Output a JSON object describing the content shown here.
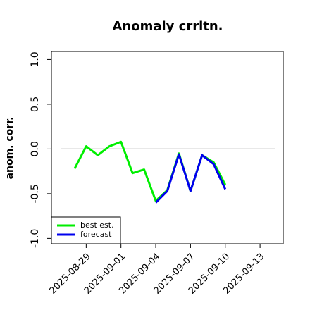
{
  "chart_data": {
    "type": "line",
    "title": "Anomaly crrltn.",
    "y_label": "anom. corr.",
    "x": [
      "2025-08-28",
      "2025-08-29",
      "2025-08-30",
      "2025-08-31",
      "2025-09-01",
      "2025-09-02",
      "2025-09-03",
      "2025-09-04",
      "2025-09-05",
      "2025-09-06",
      "2025-09-07",
      "2025-09-08",
      "2025-09-09",
      "2025-09-10"
    ],
    "series": [
      {
        "name": "best est.",
        "color": "#00ee00",
        "values": [
          -0.22,
          0.03,
          -0.07,
          0.03,
          0.08,
          -0.27,
          -0.23,
          -0.58,
          -0.46,
          -0.05,
          -0.47,
          -0.07,
          -0.15,
          -0.4
        ]
      },
      {
        "name": "forecast",
        "color": "#0000ee",
        "values": [
          null,
          null,
          null,
          null,
          null,
          null,
          null,
          -0.6,
          -0.47,
          -0.06,
          -0.47,
          -0.07,
          -0.17,
          -0.45
        ]
      }
    ],
    "xlim": [
      "2025-08-26",
      "2025-09-15"
    ],
    "xticks": [
      "2025-08-29",
      "2025-09-01",
      "2025-09-04",
      "2025-09-07",
      "2025-09-10",
      "2025-09-13"
    ],
    "xtick_label_colors": [
      "#000000",
      "#000000",
      "#228b22",
      "#000000",
      "#000000",
      "#000000"
    ],
    "ylim": [
      -1.06,
      1.09
    ],
    "yticks": [
      {
        "value": -1,
        "label": "-1.0"
      },
      {
        "value": -0.5,
        "label": "-0.5"
      },
      {
        "value": 0,
        "label": "0.0"
      },
      {
        "value": 0.5,
        "label": "0.5"
      },
      {
        "value": 1,
        "label": "1.0"
      }
    ],
    "hline": 0,
    "legend": "lower left"
  }
}
